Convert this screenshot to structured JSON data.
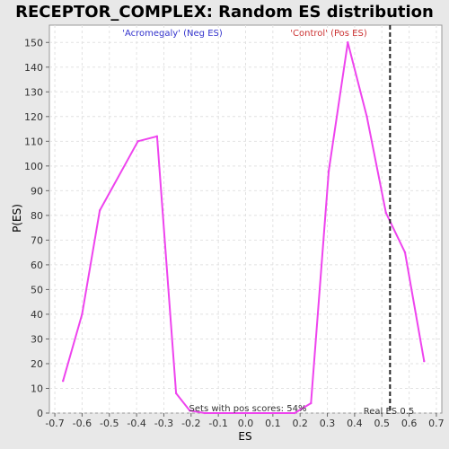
{
  "chart_data": {
    "type": "line",
    "title": "RECEPTOR_COMPLEX: Random ES distribution",
    "xlabel": "ES",
    "ylabel": "P(ES)",
    "xlim": [
      -0.72,
      0.72
    ],
    "ylim": [
      0,
      157
    ],
    "xticks": [
      -0.7,
      -0.6,
      -0.5,
      -0.4,
      -0.3,
      -0.2,
      -0.1,
      0.0,
      0.1,
      0.2,
      0.3,
      0.4,
      0.5,
      0.6,
      0.7
    ],
    "xtick_labels": [
      "-0.7",
      "-0.6",
      "-0.5",
      "-0.4",
      "-0.3",
      "-0.2",
      "-0.1",
      "0.0",
      "0.1",
      "0.2",
      "0.3",
      "0.4",
      "0.5",
      "0.6",
      "0.7"
    ],
    "yticks": [
      0,
      10,
      20,
      30,
      40,
      50,
      60,
      70,
      80,
      90,
      100,
      110,
      120,
      130,
      140,
      150
    ],
    "grid": true,
    "series": [
      {
        "color": "#ee44ee",
        "x": [
          -0.67,
          -0.6,
          -0.535,
          -0.395,
          -0.325,
          -0.255,
          -0.205,
          -0.15,
          0.0,
          0.18,
          0.24,
          0.305,
          0.375,
          0.445,
          0.515,
          0.585,
          0.655
        ],
        "y": [
          13,
          40,
          82,
          110,
          112,
          8,
          1,
          0,
          0,
          0,
          4,
          98,
          150,
          120,
          81,
          65,
          21
        ]
      }
    ],
    "real_es": 0.53,
    "real_es_label": "Real ES 0.5",
    "annotations": {
      "neg": "'Acromegaly' (Neg ES)",
      "pos": "'Control' (Pos ES)",
      "sets": "Sets with pos scores: 54%"
    },
    "colors": {
      "line": "#ee44ee",
      "neg_text": "#3333cc",
      "pos_text": "#cc3333",
      "real_es_line": "#222222"
    }
  }
}
